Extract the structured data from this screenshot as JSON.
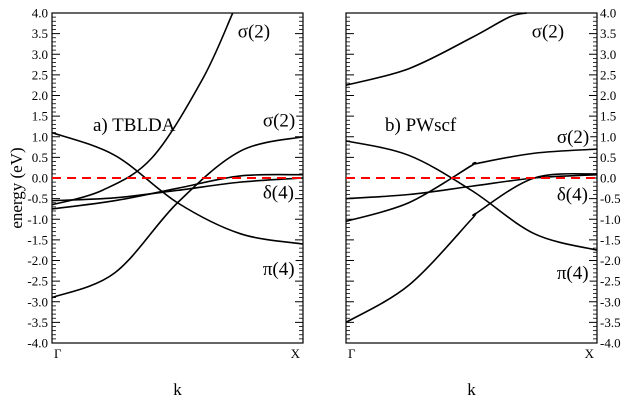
{
  "chart_data": {
    "type": "line",
    "ylabel": "energy (eV)",
    "xlabel": "k",
    "ylim": [
      -4.0,
      4.0
    ],
    "yticks": [
      "4.0",
      "3.5",
      "3.0",
      "2.5",
      "2.0",
      "1.5",
      "1.0",
      "0.5",
      "0.0",
      "-0.5",
      "-1.0",
      "-1.5",
      "-2.0",
      "-2.5",
      "-3.0",
      "-3.5",
      "-4.0"
    ],
    "xticks": [
      "Γ",
      "X"
    ],
    "fermi_level": {
      "y": 0.0,
      "color": "#ff0000",
      "style": "dashed"
    },
    "panels": [
      {
        "title": "a)  TBLDA",
        "xlabel": "k",
        "band_labels": [
          {
            "text": "σ(2)",
            "x": 0.74,
            "y": 3.55
          },
          {
            "text": "σ(2)",
            "x": 0.84,
            "y": 1.4
          },
          {
            "text": "δ(4)",
            "x": 0.84,
            "y": -0.35
          },
          {
            "text": "π(4)",
            "x": 0.84,
            "y": -2.2
          }
        ],
        "series": [
          {
            "x": [
              0,
              0.25,
              0.5,
              0.75,
              1.0
            ],
            "values": [
              -0.55,
              -0.48,
              -0.3,
              -0.1,
              0.0
            ]
          },
          {
            "x": [
              0,
              0.25,
              0.5,
              0.75,
              1.0
            ],
            "values": [
              -0.75,
              -0.55,
              -0.25,
              0.05,
              0.08
            ]
          },
          {
            "x": [
              0,
              0.25,
              0.5,
              0.75,
              1.0
            ],
            "values": [
              1.1,
              0.55,
              -0.6,
              -1.35,
              -1.6
            ]
          },
          {
            "x": [
              0,
              0.25,
              0.5,
              0.75,
              1.0
            ],
            "values": [
              -2.9,
              -2.3,
              -0.6,
              0.65,
              1.0
            ]
          },
          {
            "x": [
              0,
              0.2,
              0.4,
              0.6,
              0.72
            ],
            "values": [
              -0.65,
              -0.3,
              0.5,
              2.4,
              4.0
            ]
          }
        ]
      },
      {
        "title": "b)  PWscf",
        "xlabel": "k",
        "band_labels": [
          {
            "text": "σ(2)",
            "x": 0.74,
            "y": 3.55
          },
          {
            "text": "σ(2)",
            "x": 0.84,
            "y": 1.0
          },
          {
            "text": "δ(4)",
            "x": 0.84,
            "y": -0.4
          },
          {
            "text": "π(4)",
            "x": 0.84,
            "y": -2.3
          }
        ],
        "series": [
          {
            "x": [
              0,
              0.25,
              0.5,
              0.75,
              1.0
            ],
            "values": [
              -0.5,
              -0.4,
              -0.2,
              0.0,
              0.08
            ]
          },
          {
            "x": [
              0,
              0.25,
              0.5,
              0.75,
              1.0
            ],
            "values": [
              0.9,
              0.55,
              -0.3,
              -1.35,
              -1.75
            ]
          },
          {
            "x": [
              0,
              0.25,
              0.5,
              0.52,
              0.75,
              1.0
            ],
            "values": [
              -1.05,
              -0.6,
              0.3,
              0.35,
              0.6,
              0.7
            ]
          },
          {
            "x": [
              0,
              0.25,
              0.5,
              0.52,
              0.75,
              1.0
            ],
            "values": [
              -3.5,
              -2.6,
              -1.0,
              -0.85,
              0.0,
              0.1
            ]
          },
          {
            "x": [
              0,
              0.25,
              0.5,
              0.65,
              0.72
            ],
            "values": [
              2.25,
              2.65,
              3.4,
              3.9,
              4.0
            ]
          }
        ]
      }
    ]
  }
}
